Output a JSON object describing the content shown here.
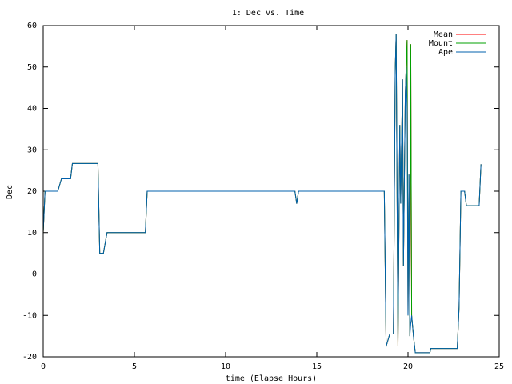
{
  "chart_data": {
    "type": "line",
    "title": "1: Dec vs. Time",
    "xlabel": "time (Elapse Hours)",
    "ylabel": "Dec",
    "x": [
      0,
      0.1,
      0.8,
      1.0,
      1.5,
      1.6,
      3.0,
      3.1,
      3.3,
      3.5,
      5.6,
      5.7,
      13.8,
      13.9,
      14.0,
      18.7,
      18.8,
      19.0,
      19.2,
      19.3,
      19.35,
      19.45,
      19.55,
      19.6,
      19.7,
      19.75,
      19.85,
      19.9,
      19.95,
      20.0,
      20.05,
      20.1,
      20.15,
      20.2,
      20.3,
      20.4,
      21.2,
      21.25,
      22.7,
      22.8,
      22.9,
      23.1,
      23.2,
      23.9,
      24.0
    ],
    "series": [
      {
        "name": "Mean",
        "color": "#ff0000",
        "values": [
          10,
          20,
          20,
          23,
          23,
          26.7,
          26.7,
          5,
          5,
          10,
          10,
          20,
          20,
          17,
          20,
          20,
          -17.5,
          -14.5,
          -14.5,
          49,
          58,
          -17.5,
          36,
          17,
          47,
          2,
          43,
          50,
          56.5,
          -10,
          24,
          -15,
          55.5,
          -10,
          -15,
          -19,
          -19,
          -18,
          -18,
          -8,
          20,
          20,
          16.5,
          16.5,
          26.5
        ]
      },
      {
        "name": "Mount",
        "color": "#00a000",
        "values": [
          10,
          20,
          20,
          23,
          23,
          26.7,
          26.7,
          5,
          5,
          10,
          10,
          20,
          20,
          17,
          20,
          20,
          -17.5,
          -14.5,
          -14.5,
          49,
          58,
          -17.5,
          36,
          17,
          47,
          2,
          43,
          50,
          56.5,
          -10,
          24,
          -15,
          55.5,
          -10,
          -15,
          -19,
          -19,
          -18,
          -18,
          -8,
          20,
          20,
          16.5,
          16.5,
          26.5
        ]
      },
      {
        "name": "Ape",
        "color": "#0060ad",
        "values": [
          10,
          20,
          20,
          23,
          23,
          26.7,
          26.7,
          5,
          5,
          10,
          10,
          20,
          20,
          17,
          20,
          20,
          -17.5,
          -14.5,
          -14.5,
          49,
          58,
          -16,
          36,
          17,
          47,
          2,
          43,
          50,
          40,
          -10,
          24,
          -15,
          -12,
          -10,
          -15,
          -19,
          -19,
          -18,
          -18,
          -8,
          20,
          20,
          16.5,
          16.5,
          26.5
        ]
      }
    ],
    "xlim": [
      0,
      25
    ],
    "xticks": [
      0,
      5,
      10,
      15,
      20,
      25
    ],
    "ylim": [
      -20,
      60
    ],
    "yticks": [
      -20,
      -10,
      0,
      10,
      20,
      30,
      40,
      50,
      60
    ],
    "legend": "top-right"
  }
}
